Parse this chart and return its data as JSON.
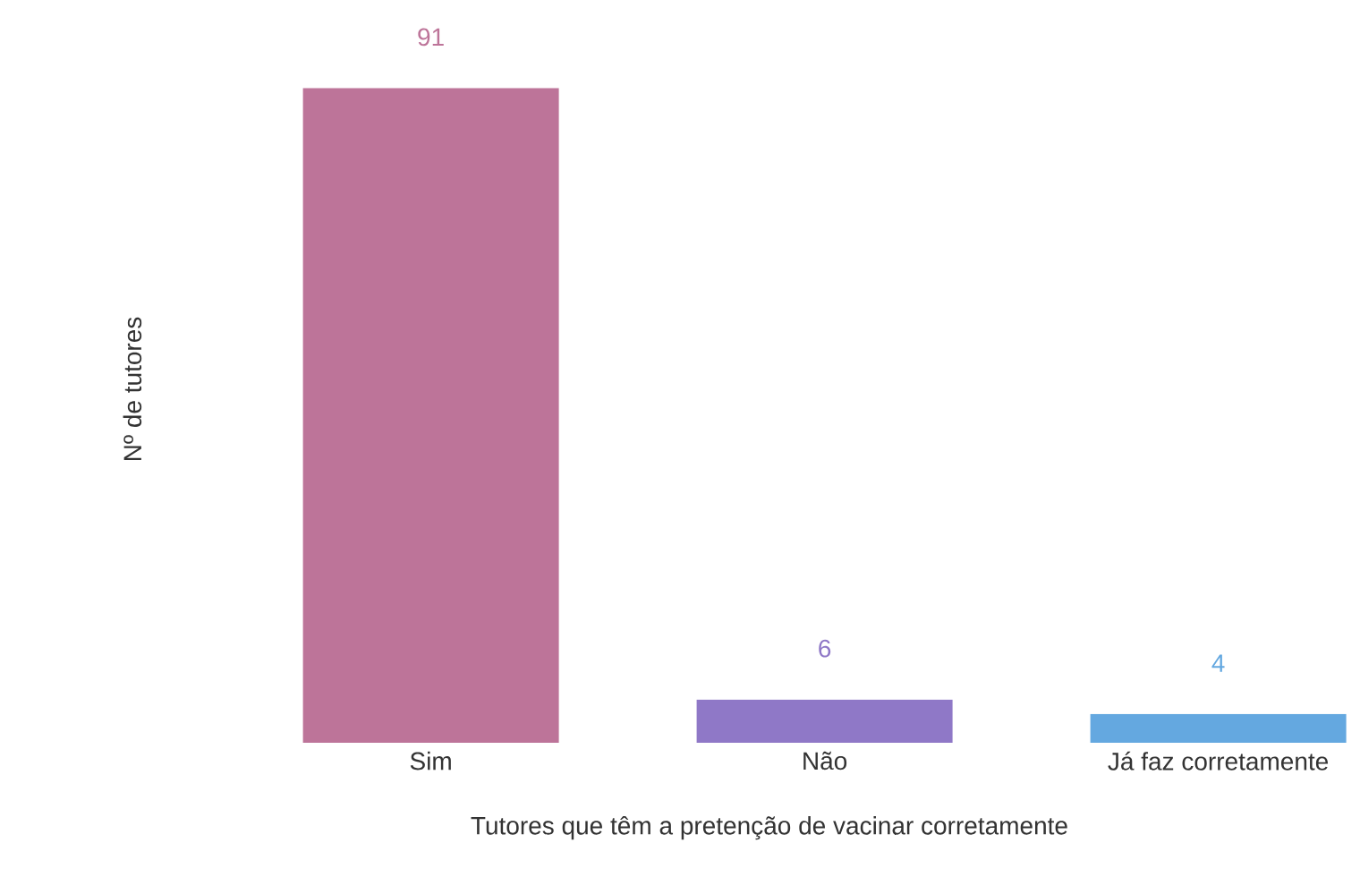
{
  "chart_data": {
    "type": "bar",
    "xlabel": "Tutores que têm a pretenção de vacinar corretamente",
    "ylabel": "Nº de tutores",
    "categories": [
      "Sim",
      "Não",
      "Já faz corretamente"
    ],
    "values": [
      91,
      6,
      4
    ],
    "colors": [
      "#bd7499",
      "#8f78c7",
      "#64a8e0"
    ],
    "data_labels": true
  }
}
